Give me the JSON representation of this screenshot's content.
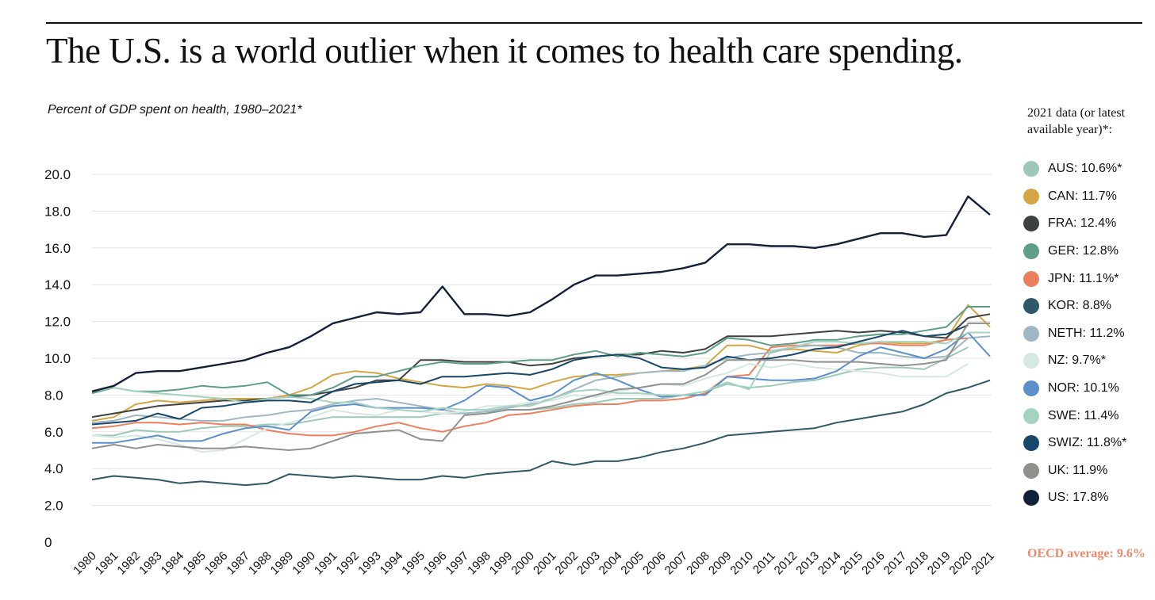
{
  "header": {
    "title": "The U.S. is a world outlier when it comes to health care spending."
  },
  "chart_data": {
    "type": "line",
    "title": "The U.S. is a world outlier when it comes to health care spending.",
    "subtitle": "Percent of GDP spent on health, 1980–2021*",
    "xlabel": "",
    "ylabel": "",
    "ylim": [
      0,
      20
    ],
    "grid": true,
    "legend_placement": "right",
    "y_ticks": [
      "0",
      "2.0",
      "4.0",
      "6.0",
      "8.0",
      "10.0",
      "12.0",
      "14.0",
      "16.0",
      "18.0",
      "20.0"
    ],
    "x": [
      1980,
      1981,
      1982,
      1983,
      1984,
      1985,
      1986,
      1987,
      1988,
      1989,
      1990,
      1991,
      1992,
      1993,
      1994,
      1995,
      1996,
      1997,
      1998,
      1999,
      2000,
      2001,
      2002,
      2003,
      2004,
      2005,
      2006,
      2007,
      2008,
      2009,
      2010,
      2011,
      2012,
      2013,
      2014,
      2015,
      2016,
      2017,
      2018,
      2019,
      2020,
      2021
    ],
    "series": [
      {
        "key": "AUS",
        "color": "#9cc9b7",
        "values": [
          5.8,
          5.8,
          6.1,
          6.0,
          6.0,
          6.2,
          6.3,
          6.3,
          6.4,
          6.4,
          6.6,
          6.8,
          6.8,
          6.8,
          6.8,
          6.8,
          7.0,
          7.0,
          7.1,
          7.2,
          7.2,
          7.3,
          7.5,
          7.6,
          7.8,
          7.8,
          7.8,
          8.0,
          8.2,
          8.6,
          8.4,
          8.5,
          8.7,
          8.8,
          9.1,
          9.4,
          9.5,
          9.5,
          9.4,
          10.0,
          10.6,
          null
        ]
      },
      {
        "key": "CAN",
        "color": "#d4a643",
        "values": [
          6.6,
          6.8,
          7.5,
          7.7,
          7.6,
          7.7,
          7.8,
          7.8,
          7.8,
          8.0,
          8.4,
          9.1,
          9.3,
          9.2,
          8.9,
          8.7,
          8.5,
          8.4,
          8.6,
          8.5,
          8.3,
          8.7,
          9.0,
          9.1,
          9.1,
          9.2,
          9.3,
          9.4,
          9.6,
          10.7,
          10.7,
          10.4,
          10.5,
          10.4,
          10.3,
          10.7,
          10.9,
          10.8,
          10.8,
          11.0,
          12.9,
          11.7
        ]
      },
      {
        "key": "FRA",
        "color": "#3d4240",
        "values": [
          6.8,
          7.0,
          7.2,
          7.4,
          7.5,
          7.6,
          7.7,
          7.7,
          7.8,
          7.9,
          8.0,
          8.2,
          8.4,
          8.8,
          8.8,
          9.9,
          9.9,
          9.8,
          9.8,
          9.8,
          9.6,
          9.7,
          10.0,
          10.1,
          10.2,
          10.2,
          10.4,
          10.3,
          10.5,
          11.2,
          11.2,
          11.2,
          11.3,
          11.4,
          11.5,
          11.4,
          11.5,
          11.4,
          11.2,
          11.1,
          12.2,
          12.4
        ]
      },
      {
        "key": "GER",
        "color": "#5e9e88",
        "values": [
          8.1,
          8.4,
          8.2,
          8.2,
          8.3,
          8.5,
          8.4,
          8.5,
          8.7,
          8.0,
          8.0,
          8.4,
          9.0,
          9.0,
          9.3,
          9.6,
          9.8,
          9.7,
          9.7,
          9.8,
          9.9,
          9.9,
          10.2,
          10.4,
          10.1,
          10.3,
          10.2,
          10.1,
          10.3,
          11.1,
          11.0,
          10.7,
          10.8,
          11.0,
          11.0,
          11.2,
          11.3,
          11.3,
          11.5,
          11.7,
          12.8,
          12.8
        ]
      },
      {
        "key": "JPN",
        "color": "#ec7f5e",
        "values": [
          6.2,
          6.3,
          6.5,
          6.5,
          6.4,
          6.5,
          6.4,
          6.4,
          6.1,
          5.9,
          5.8,
          5.8,
          6.0,
          6.3,
          6.5,
          6.2,
          6.0,
          6.3,
          6.5,
          6.9,
          7.0,
          7.2,
          7.4,
          7.5,
          7.5,
          7.7,
          7.7,
          7.8,
          8.1,
          9.0,
          9.1,
          10.6,
          10.7,
          10.7,
          10.7,
          10.8,
          10.8,
          10.7,
          10.7,
          11.0,
          11.1,
          null
        ]
      },
      {
        "key": "KOR",
        "color": "#2e5868",
        "values": [
          3.4,
          3.6,
          3.5,
          3.4,
          3.2,
          3.3,
          3.2,
          3.1,
          3.2,
          3.7,
          3.6,
          3.5,
          3.6,
          3.5,
          3.4,
          3.4,
          3.6,
          3.5,
          3.7,
          3.8,
          3.9,
          4.4,
          4.2,
          4.4,
          4.4,
          4.6,
          4.9,
          5.1,
          5.4,
          5.8,
          5.9,
          6.0,
          6.1,
          6.2,
          6.5,
          6.7,
          6.9,
          7.1,
          7.5,
          8.1,
          8.4,
          8.8
        ]
      },
      {
        "key": "NETH",
        "color": "#9fb7c5",
        "values": [
          6.5,
          6.6,
          6.9,
          6.8,
          6.7,
          6.6,
          6.6,
          6.8,
          6.9,
          7.1,
          7.2,
          7.5,
          7.7,
          7.8,
          7.6,
          7.4,
          7.2,
          7.0,
          7.1,
          7.3,
          7.5,
          7.8,
          8.3,
          8.8,
          9.0,
          9.2,
          9.3,
          9.3,
          9.6,
          10.0,
          10.2,
          10.3,
          10.6,
          10.7,
          10.6,
          10.3,
          10.3,
          10.1,
          10.0,
          10.1,
          11.1,
          11.2
        ]
      },
      {
        "key": "NZ",
        "color": "#d6e8e0",
        "values": [
          5.8,
          5.7,
          5.8,
          5.6,
          5.3,
          4.9,
          5.0,
          5.6,
          6.2,
          6.5,
          6.8,
          7.2,
          7.0,
          6.9,
          7.2,
          7.1,
          7.0,
          7.1,
          7.4,
          7.4,
          7.6,
          7.7,
          8.0,
          7.9,
          8.2,
          8.4,
          8.6,
          8.5,
          8.9,
          9.2,
          9.7,
          9.5,
          9.7,
          9.5,
          9.4,
          9.3,
          9.2,
          9.0,
          9.0,
          9.0,
          9.7,
          null
        ]
      },
      {
        "key": "NOR",
        "color": "#5b8fcb",
        "values": [
          5.4,
          5.4,
          5.6,
          5.8,
          5.5,
          5.5,
          5.9,
          6.2,
          6.3,
          6.1,
          7.1,
          7.4,
          7.5,
          7.3,
          7.3,
          7.3,
          7.2,
          7.7,
          8.5,
          8.4,
          7.7,
          8.0,
          8.8,
          9.2,
          8.8,
          8.3,
          7.9,
          8.0,
          8.0,
          9.0,
          8.9,
          8.8,
          8.8,
          8.9,
          9.3,
          10.1,
          10.6,
          10.3,
          10.0,
          10.5,
          11.4,
          10.1
        ]
      },
      {
        "key": "SWE",
        "color": "#a5d3c0",
        "values": [
          8.2,
          8.4,
          8.2,
          8.1,
          8.0,
          7.9,
          7.8,
          7.6,
          7.8,
          7.9,
          7.8,
          7.6,
          7.6,
          7.3,
          7.2,
          7.1,
          7.3,
          7.2,
          7.2,
          7.4,
          7.4,
          7.8,
          8.2,
          8.3,
          8.1,
          8.1,
          8.0,
          8.0,
          8.2,
          8.7,
          8.3,
          10.4,
          10.6,
          10.9,
          10.9,
          10.8,
          10.9,
          10.9,
          10.9,
          10.8,
          11.4,
          11.4
        ]
      },
      {
        "key": "SWIZ",
        "color": "#17476b",
        "values": [
          6.4,
          6.5,
          6.6,
          7.0,
          6.7,
          7.3,
          7.4,
          7.6,
          7.7,
          7.7,
          7.6,
          8.2,
          8.6,
          8.7,
          8.8,
          8.6,
          9.0,
          9.0,
          9.1,
          9.2,
          9.1,
          9.4,
          9.9,
          10.1,
          10.2,
          10.0,
          9.5,
          9.4,
          9.5,
          10.1,
          9.9,
          10.0,
          10.2,
          10.5,
          10.6,
          10.9,
          11.2,
          11.5,
          11.2,
          11.3,
          11.8,
          null
        ]
      },
      {
        "key": "UK",
        "color": "#8f918d",
        "values": [
          5.1,
          5.3,
          5.1,
          5.3,
          5.2,
          5.1,
          5.1,
          5.2,
          5.1,
          5.0,
          5.1,
          5.5,
          5.9,
          6.0,
          6.1,
          5.6,
          5.5,
          6.9,
          7.0,
          7.2,
          7.2,
          7.4,
          7.7,
          8.0,
          8.3,
          8.4,
          8.6,
          8.6,
          9.1,
          9.9,
          9.9,
          9.9,
          9.9,
          9.8,
          9.8,
          9.8,
          9.7,
          9.6,
          9.7,
          9.9,
          11.9,
          11.9
        ]
      },
      {
        "key": "US",
        "color": "#13203a",
        "values": [
          8.2,
          8.5,
          9.2,
          9.3,
          9.3,
          9.5,
          9.7,
          9.9,
          10.3,
          10.6,
          11.2,
          11.9,
          12.2,
          12.5,
          12.4,
          12.5,
          13.9,
          12.4,
          12.4,
          12.3,
          12.5,
          13.2,
          14.0,
          14.5,
          14.5,
          14.6,
          14.7,
          14.9,
          15.2,
          16.2,
          16.2,
          16.1,
          16.1,
          16.0,
          16.2,
          16.5,
          16.8,
          16.8,
          16.6,
          16.7,
          18.8,
          17.8
        ]
      }
    ]
  },
  "legend": {
    "heading": "2021 data (or latest available year)*:",
    "items": [
      {
        "label": "AUS: 10.6%*",
        "color": "#9cc9b7"
      },
      {
        "label": "CAN: 11.7%",
        "color": "#d4a643"
      },
      {
        "label": "FRA: 12.4%",
        "color": "#3d4240"
      },
      {
        "label": "GER: 12.8%",
        "color": "#5e9e88"
      },
      {
        "label": "JPN: 11.1%*",
        "color": "#ec7f5e"
      },
      {
        "label": "KOR: 8.8%",
        "color": "#2e5868"
      },
      {
        "label": "NETH: 11.2%",
        "color": "#9fb7c5"
      },
      {
        "label": "NZ: 9.7%*",
        "color": "#d6e8e0"
      },
      {
        "label": "NOR: 10.1%",
        "color": "#5b8fcb"
      },
      {
        "label": "SWE: 11.4%",
        "color": "#a5d3c0"
      },
      {
        "label": "SWIZ: 11.8%*",
        "color": "#17476b"
      },
      {
        "label": "UK: 11.9%",
        "color": "#8f918d"
      },
      {
        "label": "US: 17.8%",
        "color": "#13203a"
      }
    ]
  },
  "oecd": {
    "text": "OECD average: 9.6%",
    "color": "#ec8a6b"
  }
}
